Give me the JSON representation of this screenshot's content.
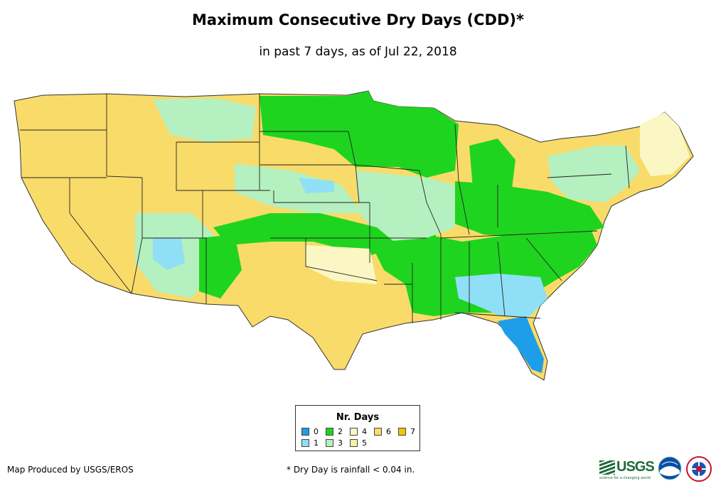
{
  "header": {
    "title": "Maximum Consecutive Dry Days (CDD)*",
    "subtitle": "in past 7 days, as of Jul 22, 2018"
  },
  "legend": {
    "title": "Nr. Days",
    "items": [
      {
        "label": "0",
        "color": "#1e9ee8"
      },
      {
        "label": "1",
        "color": "#8fe0f7"
      },
      {
        "label": "2",
        "color": "#1fd41f"
      },
      {
        "label": "3",
        "color": "#b5f0c0"
      },
      {
        "label": "4",
        "color": "#fbf7c4"
      },
      {
        "label": "5",
        "color": "#fff09a"
      },
      {
        "label": "6",
        "color": "#f9db6a"
      },
      {
        "label": "7",
        "color": "#f5c400"
      }
    ]
  },
  "footer": {
    "credit": "Map Produced by USGS/EROS",
    "footnote": "* Dry Day is rainfall < 0.04 in.",
    "usgs_logo": "USGS",
    "usgs_tagline": "science for a changing world"
  },
  "icons": [
    "usgs-logo",
    "noaa-logo",
    "nws-logo"
  ]
}
